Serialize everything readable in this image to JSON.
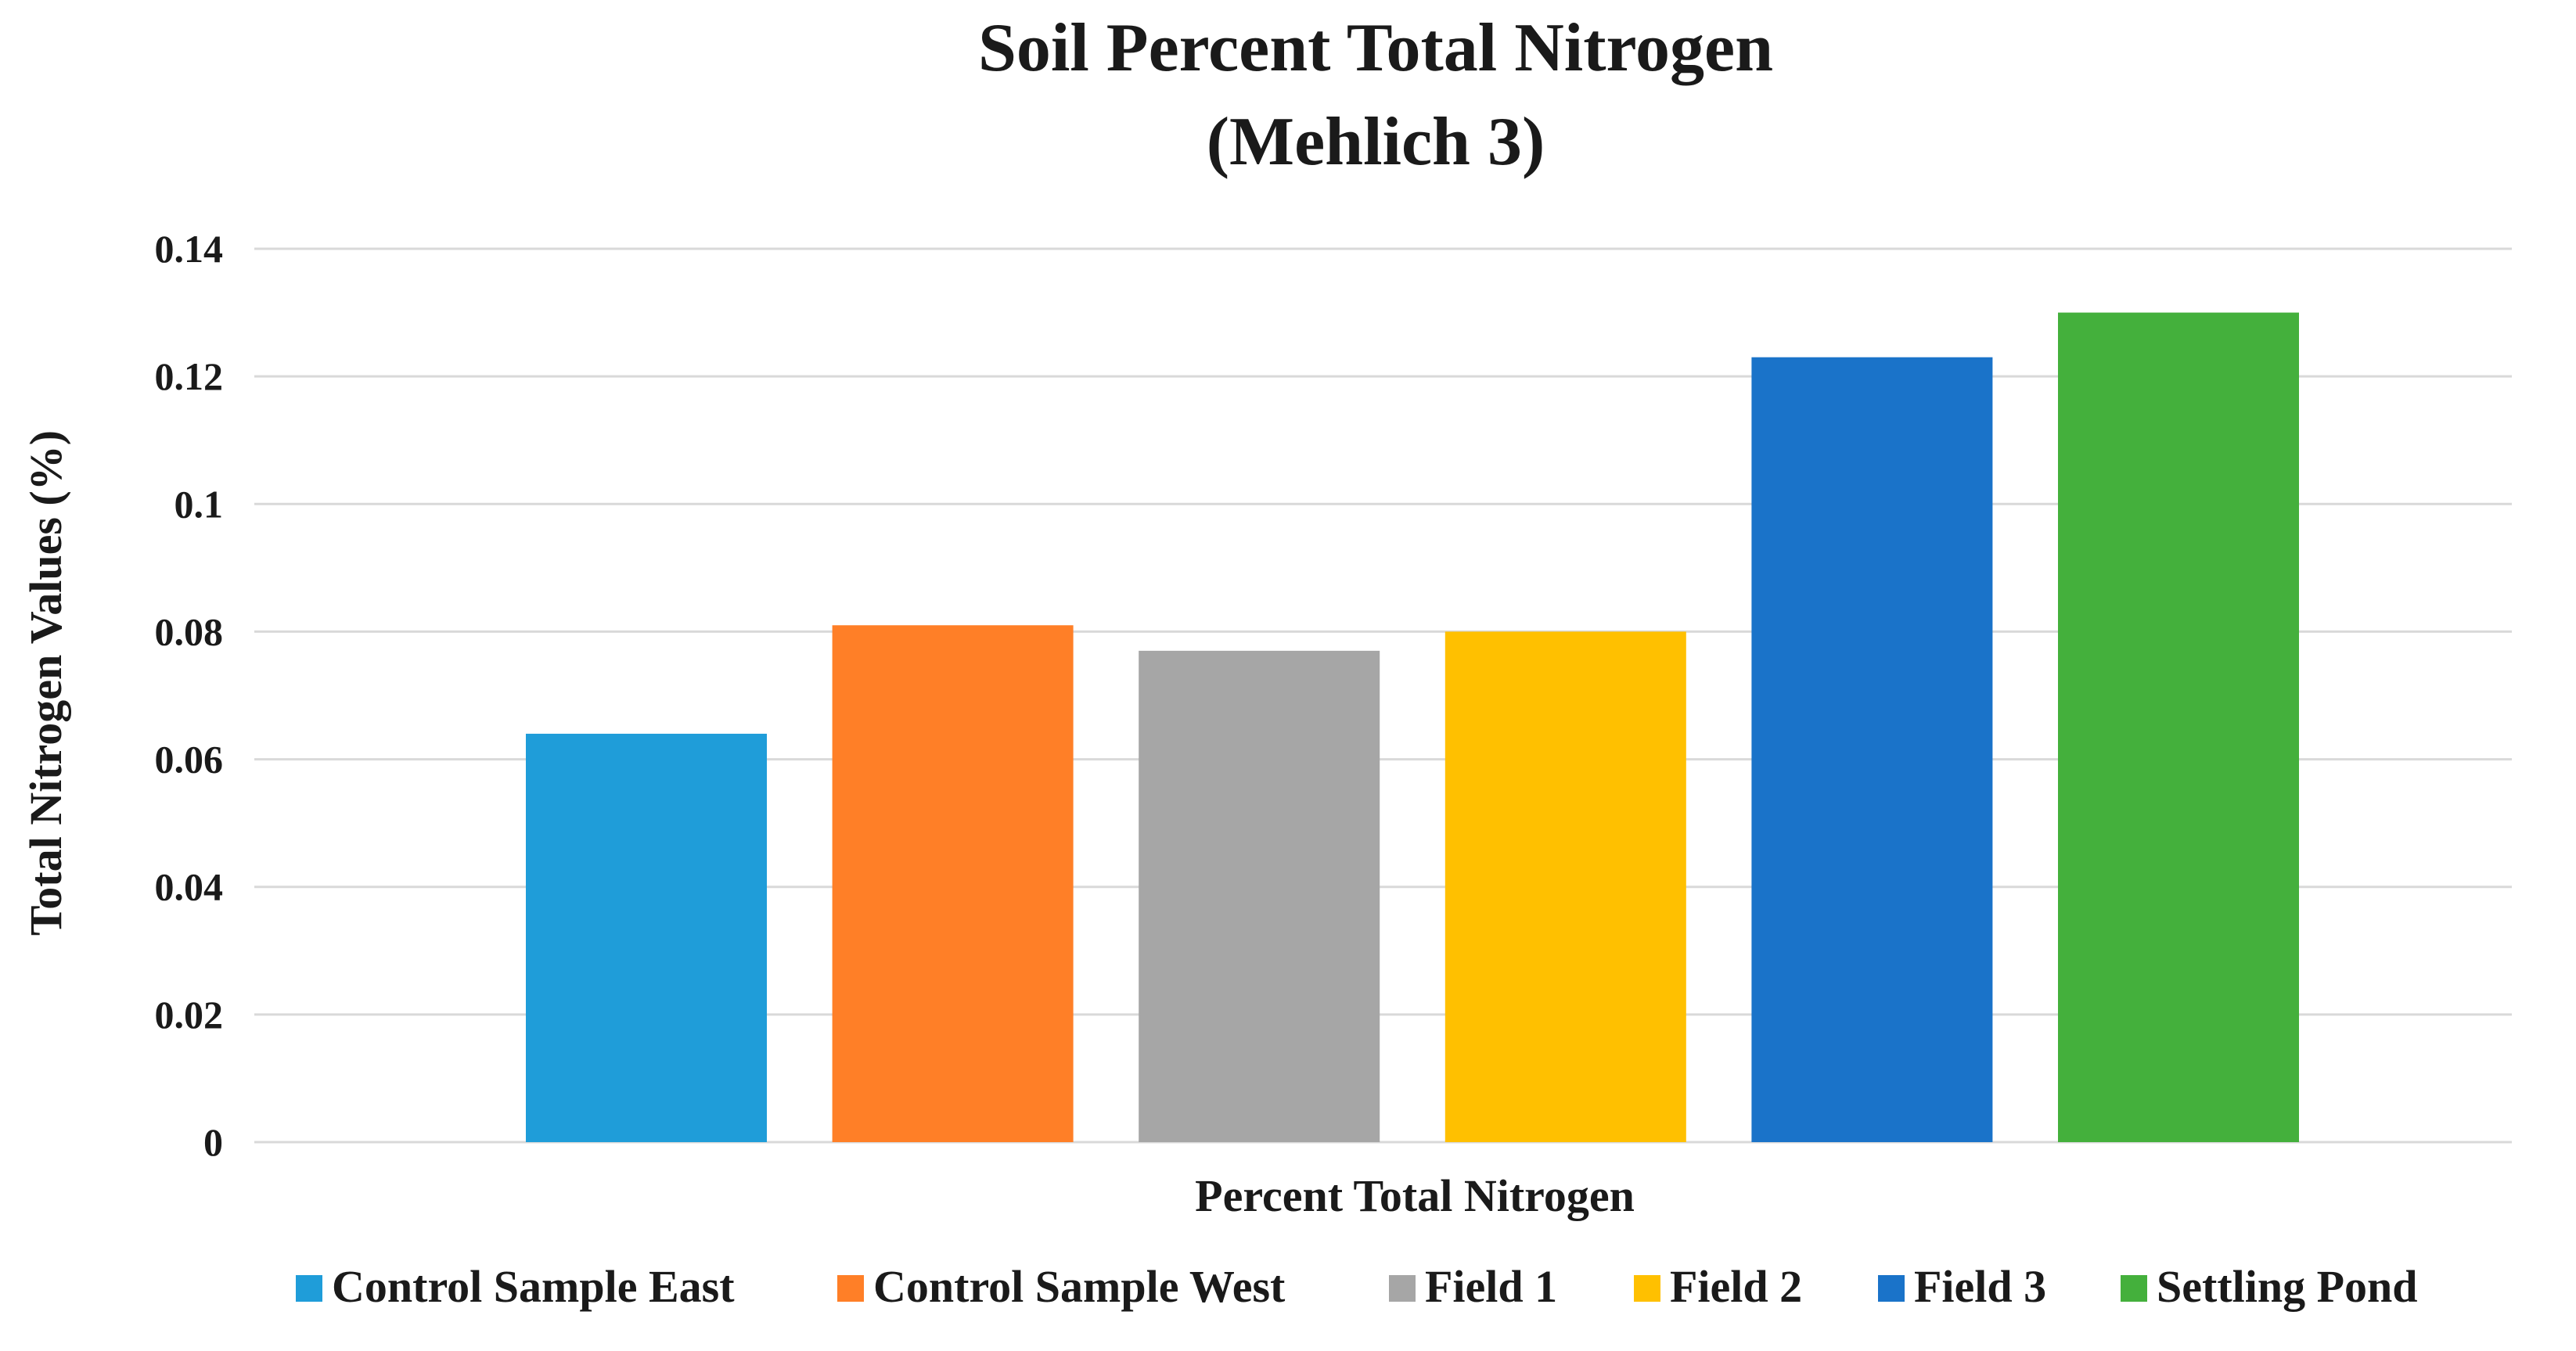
{
  "chart_data": {
    "type": "bar",
    "title": "Soil Percent Total Nitrogen",
    "subtitle": "(Mehlich 3)",
    "xlabel": "Percent Total Nitrogen",
    "ylabel": "Total Nitrogen Values (%)",
    "ylim": [
      0,
      0.14
    ],
    "yticks": [
      0,
      0.02,
      0.04,
      0.06,
      0.08,
      0.1,
      0.12,
      0.14
    ],
    "ytick_labels": [
      "0",
      "0.02",
      "0.04",
      "0.06",
      "0.08",
      "0.1",
      "0.12",
      "0.14"
    ],
    "grid": true,
    "legend_position": "bottom",
    "series": [
      {
        "name": "Control Sample East",
        "value": 0.064,
        "color": "#1F9DD9"
      },
      {
        "name": "Control Sample West",
        "value": 0.081,
        "color": "#FF7F27"
      },
      {
        "name": "Field 1",
        "value": 0.077,
        "color": "#A6A6A6"
      },
      {
        "name": "Field 2",
        "value": 0.08,
        "color": "#FFC000"
      },
      {
        "name": "Field 3",
        "value": 0.123,
        "color": "#1A73C9"
      },
      {
        "name": "Settling Pond",
        "value": 0.13,
        "color": "#44B03C"
      }
    ]
  }
}
